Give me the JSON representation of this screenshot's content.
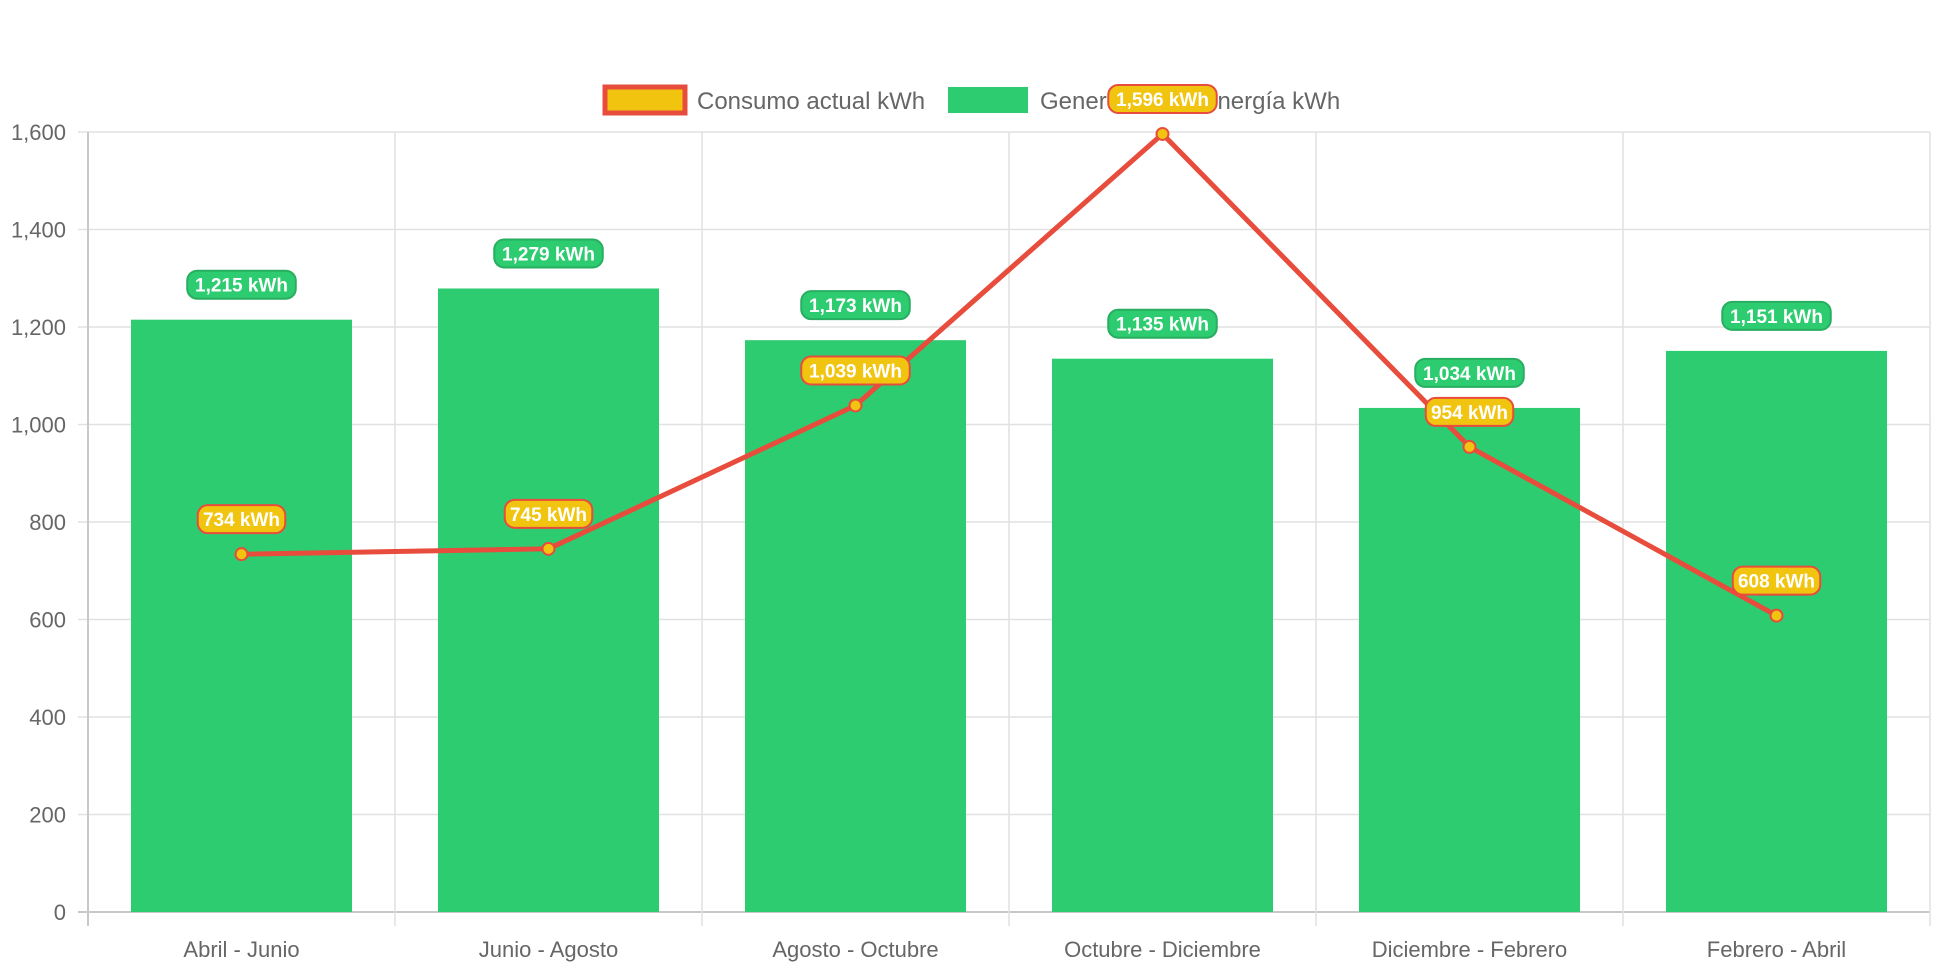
{
  "chart_data": {
    "type": "bar",
    "categories": [
      "Abril - Junio",
      "Junio - Agosto",
      "Agosto - Octubre",
      "Octubre - Diciembre",
      "Diciembre - Febrero",
      "Febrero - Abril"
    ],
    "series": [
      {
        "name": "Consumo actual kWh",
        "type": "line",
        "values": [
          734,
          745,
          1039,
          1596,
          954,
          608
        ],
        "data_labels": [
          "734 kWh",
          "745 kWh",
          "1,039 kWh",
          "1,596 kWh",
          "954 kWh",
          "608 kWh"
        ],
        "color": "#e74c3c",
        "fill_color": "#f1c40f"
      },
      {
        "name": "Generación de energía kWh",
        "type": "bar",
        "values": [
          1215,
          1279,
          1173,
          1135,
          1034,
          1151
        ],
        "data_labels": [
          "1,215 kWh",
          "1,279 kWh",
          "1,173 kWh",
          "1,135 kWh",
          "1,034 kWh",
          "1,151 kWh"
        ],
        "color": "#2ecc71"
      }
    ],
    "title": "",
    "xlabel": "",
    "ylabel": "",
    "ylim": [
      0,
      1600
    ],
    "y_ticks": [
      0,
      200,
      400,
      600,
      800,
      1000,
      1200,
      1400,
      1600
    ],
    "y_tick_labels": [
      "0",
      "200",
      "400",
      "600",
      "800",
      "1,000",
      "1,200",
      "1,400",
      "1,600"
    ],
    "grid": true,
    "legend_position": "top-center"
  }
}
